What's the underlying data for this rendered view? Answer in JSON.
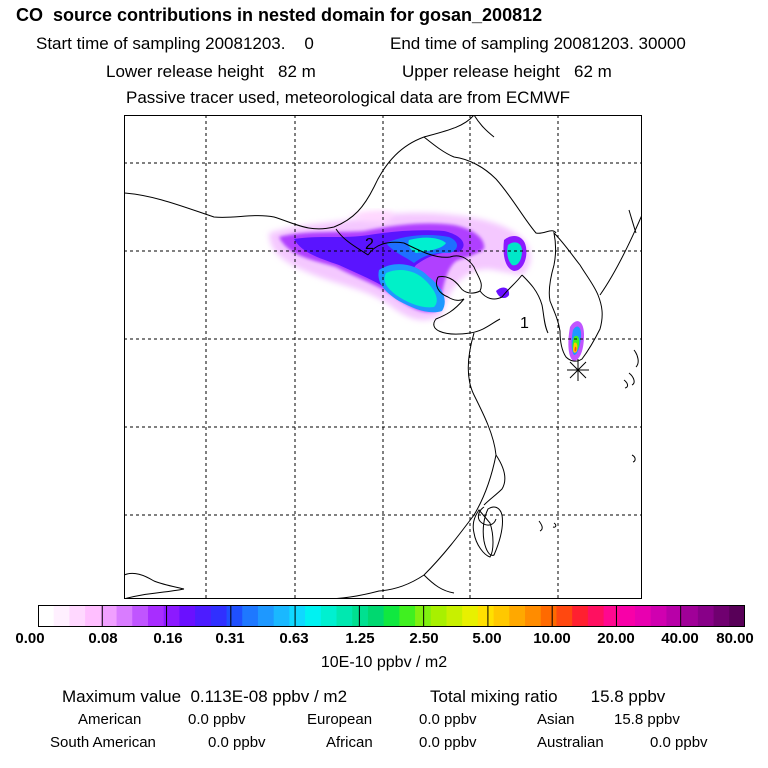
{
  "header": {
    "title": "CO  source contributions in nested domain for gosan_200812",
    "sampling_start": "Start time of sampling 20081203.    0",
    "sampling_end": "End time of sampling 20081203. 30000",
    "lower_release": "Lower release height   82 m",
    "upper_release": "Upper release height   62 m",
    "tracer_note": "Passive tracer used, meteorological data are from ECMWF"
  },
  "map": {
    "labels": [
      {
        "text": "2",
        "lon": 103.5,
        "lat": 40.0
      },
      {
        "text": "1",
        "lon": 122.5,
        "lat": 34.8
      }
    ],
    "receptor_symbol": "*"
  },
  "colorbar": {
    "colors": [
      "#ffffff",
      "#fff0ff",
      "#ffd8ff",
      "#ffbfff",
      "#f0a0ff",
      "#d97cff",
      "#c055ff",
      "#a82dff",
      "#8c1aff",
      "#6a10ff",
      "#4d1cff",
      "#3030ff",
      "#1f50ff",
      "#1e78ff",
      "#1e98ff",
      "#1ab8ff",
      "#10d8ff",
      "#00f2f2",
      "#00f0d0",
      "#00e8b0",
      "#00e090",
      "#00d870",
      "#10e840",
      "#40f020",
      "#80f010",
      "#a8f000",
      "#c8f000",
      "#e8f000",
      "#ffe000",
      "#ffc800",
      "#ffa800",
      "#ff8c00",
      "#ff6a00",
      "#ff4810",
      "#ff2030",
      "#ff1060",
      "#ff0890",
      "#f800a8",
      "#e800b0",
      "#d000b0",
      "#b800a8",
      "#a00098",
      "#880088",
      "#700070",
      "#580058"
    ],
    "tick_labels": [
      "0.00",
      "0.08",
      "0.16",
      "0.31",
      "0.63",
      "1.25",
      "2.50",
      "5.00",
      "10.00",
      "20.00",
      "40.00",
      "80.00"
    ],
    "unit": "10E-10 ppbv / m2"
  },
  "stats": {
    "maximum": "Maximum value  0.113E-08 ppbv / m2",
    "total": "Total mixing ratio       15.8 ppbv"
  },
  "regions": [
    {
      "name": "American",
      "value": "0.0 ppbv"
    },
    {
      "name": "European",
      "value": "0.0 ppbv"
    },
    {
      "name": "Asian",
      "value": "15.8 ppbv"
    },
    {
      "name": "South American",
      "value": "0.0 ppbv"
    },
    {
      "name": "African",
      "value": "0.0 ppbv"
    },
    {
      "name": "Australian",
      "value": "0.0 ppbv"
    }
  ]
}
